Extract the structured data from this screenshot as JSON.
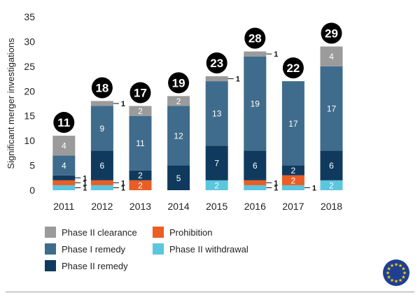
{
  "chart_data": {
    "type": "bar",
    "stacked": true,
    "ylabel": "Significant merger investigations",
    "ylim": [
      0,
      35
    ],
    "yticks": [
      0,
      5,
      10,
      15,
      20,
      25,
      30,
      35
    ],
    "grid": false,
    "legend_position": "bottom",
    "categories": [
      "2011",
      "2012",
      "2013",
      "2014",
      "2015",
      "2016",
      "2017",
      "2018"
    ],
    "totals": [
      11,
      18,
      17,
      19,
      23,
      28,
      22,
      29
    ],
    "series": [
      {
        "name": "Phase II withdrawal",
        "color": "#5bc6de",
        "values": [
          1,
          1,
          0,
          0,
          2,
          1,
          1,
          2
        ]
      },
      {
        "name": "Prohibition",
        "color": "#ea5e26",
        "values": [
          1,
          1,
          2,
          0,
          0,
          1,
          2,
          0
        ]
      },
      {
        "name": "Phase II remedy",
        "color": "#0f3a5e",
        "values": [
          1,
          6,
          2,
          5,
          7,
          6,
          2,
          6
        ]
      },
      {
        "name": "Phase I remedy",
        "color": "#3f6c8c",
        "values": [
          4,
          9,
          11,
          12,
          13,
          19,
          17,
          17
        ]
      },
      {
        "name": "Phase II clearance",
        "color": "#9b9b9b",
        "values": [
          4,
          1,
          2,
          2,
          1,
          1,
          0,
          4
        ]
      }
    ]
  },
  "legend": [
    {
      "label": "Phase II clearance",
      "color": "#9b9b9b"
    },
    {
      "label": "Prohibition",
      "color": "#ea5e26"
    },
    {
      "label": "Phase I remedy",
      "color": "#3f6c8c"
    },
    {
      "label": "Phase II withdrawal",
      "color": "#5bc6de"
    },
    {
      "label": "Phase II remedy",
      "color": "#0f3a5e"
    }
  ],
  "logo": {
    "name": "eu-flag-icon",
    "stars": 12
  }
}
